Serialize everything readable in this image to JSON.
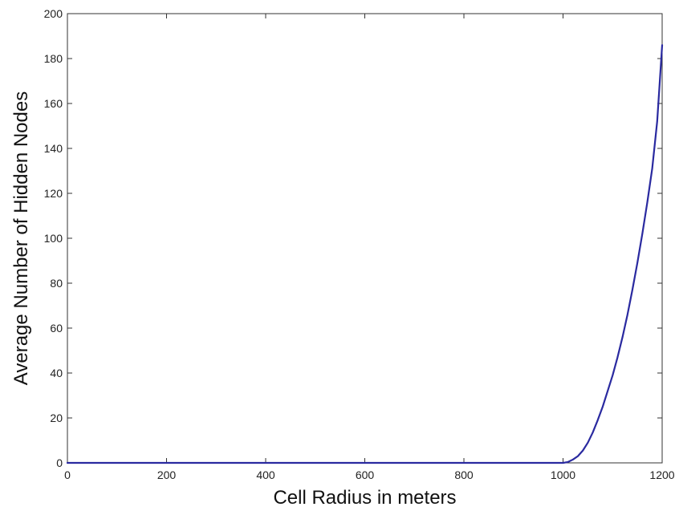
{
  "chart_data": {
    "type": "line",
    "title": "",
    "xlabel": "Cell Radius in meters",
    "ylabel": "Average Number of Hidden Nodes",
    "xlim": [
      0,
      1200
    ],
    "ylim": [
      0,
      200
    ],
    "xticks": [
      0,
      200,
      400,
      600,
      800,
      1000,
      1200
    ],
    "yticks": [
      0,
      20,
      40,
      60,
      80,
      100,
      120,
      140,
      160,
      180,
      200
    ],
    "grid": false,
    "legend": "none",
    "series": [
      {
        "color": "#2a2aa0",
        "x": [
          0,
          200,
          400,
          600,
          800,
          1000,
          1010,
          1020,
          1030,
          1040,
          1050,
          1060,
          1070,
          1080,
          1090,
          1100,
          1110,
          1120,
          1130,
          1140,
          1150,
          1160,
          1170,
          1180,
          1190,
          1200
        ],
        "y": [
          0,
          0,
          0,
          0,
          0,
          0,
          0.4,
          1.5,
          3,
          5.5,
          9,
          13.5,
          19,
          25,
          32,
          39,
          47,
          56,
          66,
          77,
          89,
          102,
          116,
          131,
          152,
          186
        ]
      }
    ]
  }
}
